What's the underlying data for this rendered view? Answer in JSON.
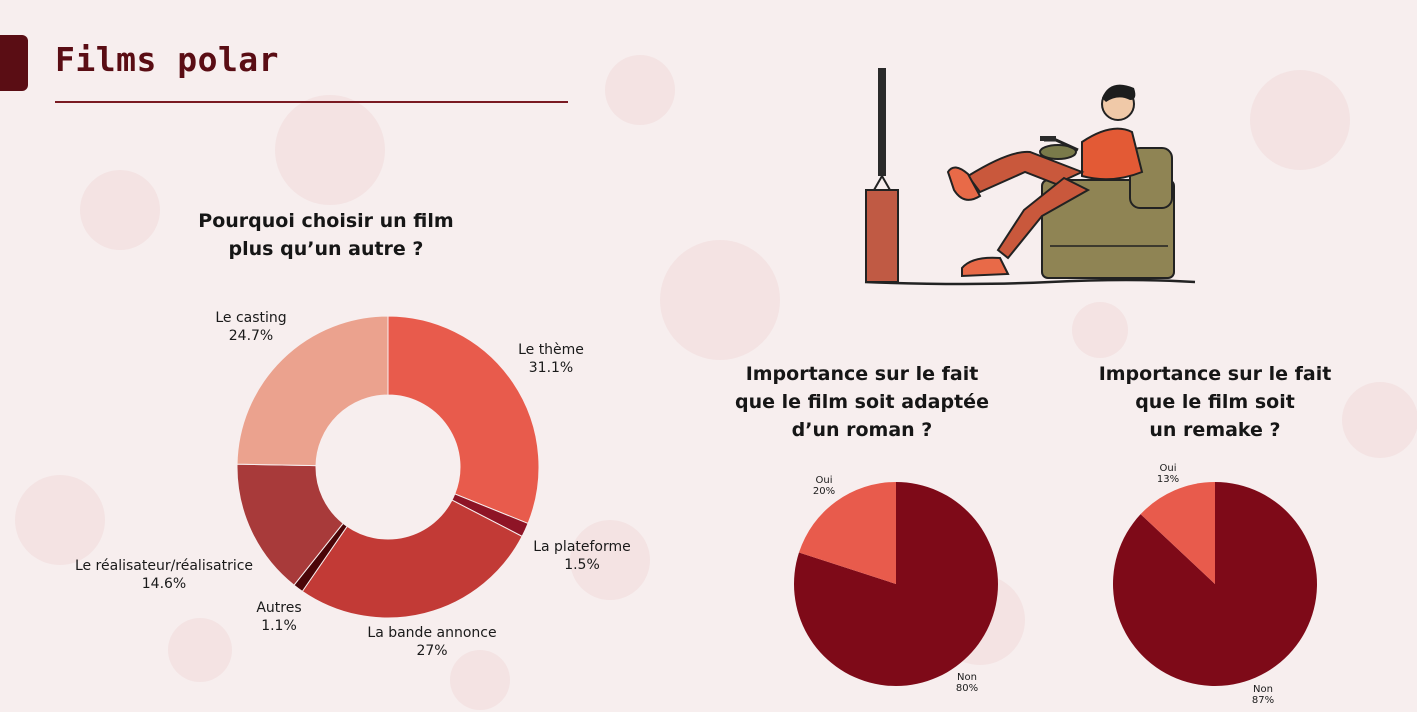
{
  "page": {
    "title": "Films polar"
  },
  "chart_data": [
    {
      "type": "pie",
      "style": "donut",
      "title_lines": [
        "Pourquoi choisir un film",
        "plus qu’un autre ?"
      ],
      "slices": [
        {
          "label": "Le thème",
          "value": 31.1,
          "value_label": "31.1%",
          "color": "#e85b4c"
        },
        {
          "label": "La plateforme",
          "value": 1.5,
          "value_label": "1.5%",
          "color": "#8e1426"
        },
        {
          "label": "La bande annonce",
          "value": 27,
          "value_label": "27%",
          "color": "#c23a36"
        },
        {
          "label": "Autres",
          "value": 1.1,
          "value_label": "1.1%",
          "color": "#4a0508"
        },
        {
          "label": "Le réalisateur/réalisatrice",
          "value": 14.6,
          "value_label": "14.6%",
          "color": "#a83a3a"
        },
        {
          "label": "Le casting",
          "value": 24.7,
          "value_label": "24.7%",
          "color": "#eba28e"
        }
      ]
    },
    {
      "type": "pie",
      "title_lines": [
        "Importance sur le fait",
        "que le film soit adaptée",
        "d’un roman ?"
      ],
      "slices": [
        {
          "label": "Non",
          "value": 80,
          "value_label": "80%",
          "color": "#7e0a18"
        },
        {
          "label": "Oui",
          "value": 20,
          "value_label": "20%",
          "color": "#e85b4c"
        }
      ]
    },
    {
      "type": "pie",
      "title_lines": [
        "Importance sur le fait",
        "que le film soit",
        "un remake ?"
      ],
      "slices": [
        {
          "label": "Non",
          "value": 87,
          "value_label": "87%",
          "color": "#7e0a18"
        },
        {
          "label": "Oui",
          "value": 13,
          "value_label": "13%",
          "color": "#e85b4c"
        }
      ]
    }
  ]
}
